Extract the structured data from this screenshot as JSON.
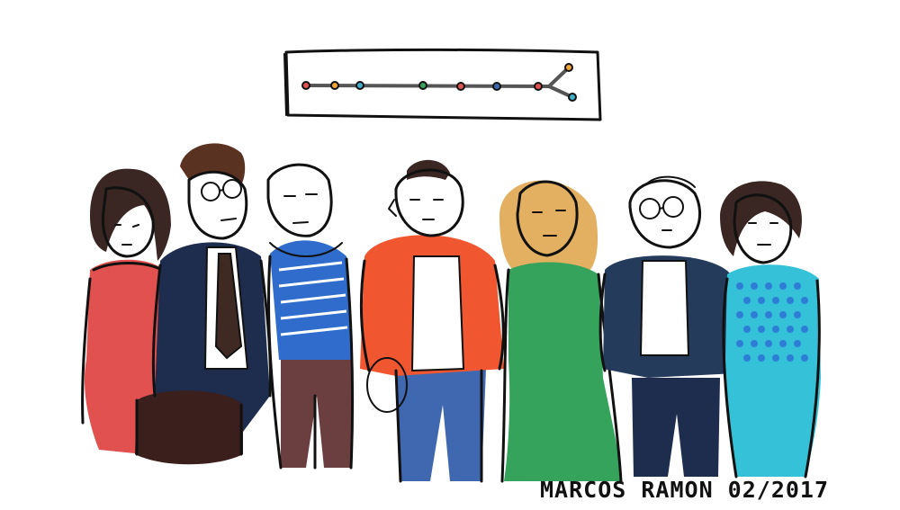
{
  "signature": {
    "text": "MARCOS RAMON 02/2017"
  },
  "colors": {
    "red_dress": "#e0514f",
    "navy_suit": "#1e2c4e",
    "tie_brown": "#3e2a22",
    "dark_brown_bag": "#3a1f1c",
    "blue_stripes": "#2f6ccb",
    "brown_pants": "#6b3f3f",
    "orange_jacket": "#f0562f",
    "blue_jeans": "#3f68b1",
    "blonde_hair": "#e2b060",
    "green_dress": "#36a35c",
    "navy_jacket": "#243b5c",
    "cyan_dress": "#35c2d8",
    "polka_dots": "#2d7fd6",
    "timeline_line": "#555555"
  },
  "timeline_dot_colors": [
    "#e0514f",
    "#f0a53a",
    "#3fb0c8",
    "#36a35c",
    "#e0514f",
    "#3f68b1"
  ],
  "people": [
    {
      "name": "woman-red-dress",
      "outfit": "red dress"
    },
    {
      "name": "man-navy-suit-glasses",
      "outfit": "navy suit, brown tie"
    },
    {
      "name": "man-blue-striped-shirt",
      "outfit": "blue striped shirt, brown trousers"
    },
    {
      "name": "man-orange-jacket",
      "outfit": "orange jacket, blue jeans"
    },
    {
      "name": "woman-green-dress",
      "outfit": "green dress, blonde hair"
    },
    {
      "name": "man-navy-jacket-glasses",
      "outfit": "navy jacket, dark trousers"
    },
    {
      "name": "woman-cyan-polka-dress",
      "outfit": "cyan polka-dot dress"
    }
  ]
}
